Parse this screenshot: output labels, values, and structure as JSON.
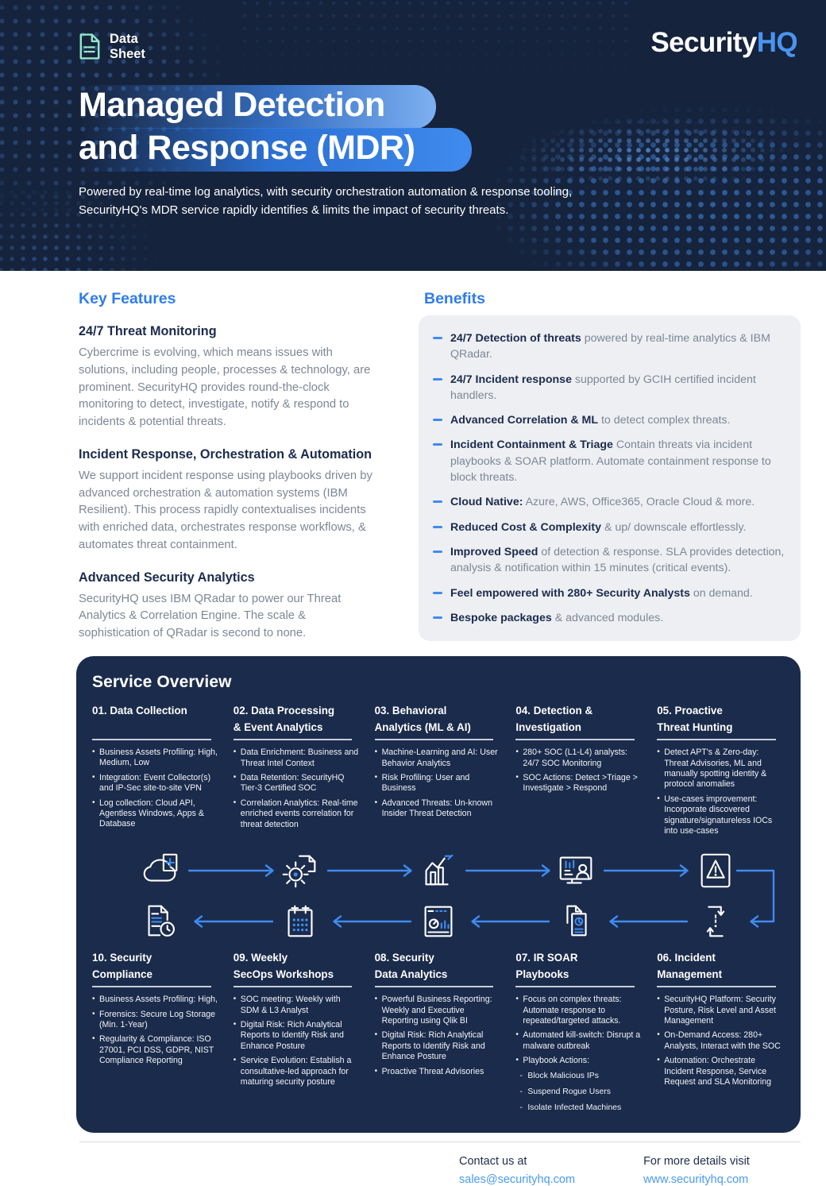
{
  "colors": {
    "header_navy": "#16233c",
    "panel_navy": "#1b2b4b",
    "accent_blue": "#2f7cea",
    "brand_blue": "#4a94f0",
    "link_blue": "#4a9af2",
    "badge_mint": "#93e9c8",
    "benefits_bg": "#edeff3",
    "heading_navy": "#1c2b4d",
    "body_gray": "#7d8795"
  },
  "header": {
    "badge_line1": "Data",
    "badge_line2": "Sheet",
    "brand_part1": "Security",
    "brand_part2": "HQ",
    "title_line1": "Managed Detection",
    "title_line2": "and Response (MDR)",
    "subtitle": "Powered by real-time log analytics, with security orchestration automation & response tooling, SecurityHQ's MDR service rapidly identifies & limits the impact of security threats."
  },
  "key_features": {
    "heading": "Key Features",
    "items": [
      {
        "title": "24/7 Threat Monitoring",
        "body": "Cybercrime is evolving, which means issues with solutions, including people, processes & technology, are prominent. SecurityHQ provides round-the-clock monitoring to detect, investigate, notify & respond to incidents & potential threats."
      },
      {
        "title": "Incident Response, Orchestration & Automation",
        "body": "We support incident response using playbooks driven by advanced orchestration & automation systems (IBM Resilient). This process rapidly contextualises incidents with enriched data, orchestrates response workflows, & automates threat containment."
      },
      {
        "title": "Advanced Security Analytics",
        "body": "SecurityHQ uses IBM QRadar to power our Threat Analytics & Correlation Engine. The scale & sophistication of QRadar is second to none."
      }
    ]
  },
  "benefits": {
    "heading": "Benefits",
    "items": [
      {
        "bold": "24/7 Detection of threats",
        "rest": " powered by real-time analytics & IBM QRadar."
      },
      {
        "bold": "24/7 Incident response",
        "rest": " supported by GCIH certified incident handlers."
      },
      {
        "bold": "Advanced Correlation & ML",
        "rest": " to detect complex threats."
      },
      {
        "bold": "Incident Containment & Triage",
        "rest": " Contain threats via incident playbooks & SOAR platform. Automate containment response to block threats."
      },
      {
        "bold": "Cloud Native:",
        "rest": " Azure, AWS, Office365, Oracle Cloud & more."
      },
      {
        "bold": "Reduced Cost & Complexity",
        "rest": " & up/ downscale effortlessly."
      },
      {
        "bold": "Improved Speed",
        "rest": " of detection & response. SLA provides detection, analysis & notification within 15 minutes (critical events)."
      },
      {
        "bold": "Feel empowered with 280+ Security Analysts",
        "rest": " on demand."
      },
      {
        "bold": "Bespoke packages",
        "rest": " & advanced modules."
      }
    ]
  },
  "service_overview": {
    "heading": "Service Overview",
    "columns_top": [
      {
        "title_line1": "01. Data Collection",
        "title_line2": "",
        "bullets": [
          "Business Assets Profiling: High, Medium, Low",
          "Integration: Event Collector(s) and IP-Sec site-to-site VPN",
          "Log collection: Cloud API, Agentless Windows, Apps & Database"
        ]
      },
      {
        "title_line1": "02. Data Processing",
        "title_line2": "& Event Analytics",
        "bullets": [
          "Data Enrichment: Business and Threat Intel Context",
          "Data Retention: SecurityHQ Tier-3 Certified SOC",
          "Correlation Analytics: Real-time enriched events correlation for threat detection"
        ]
      },
      {
        "title_line1": "03. Behavioral",
        "title_line2": "Analytics (ML & AI)",
        "bullets": [
          "Machine-Learning and AI: User Behavior Analytics",
          "Risk Profiling: User and Business",
          "Advanced Threats: Un-known Insider Threat Detection"
        ]
      },
      {
        "title_line1": "04. Detection &",
        "title_line2": "Investigation",
        "bullets": [
          "280+ SOC (L1-L4) analysts: 24/7 SOC Monitoring",
          "SOC Actions: Detect >Triage > Investigate > Respond"
        ]
      },
      {
        "title_line1": "05. Proactive",
        "title_line2": "Threat Hunting",
        "bullets": [
          "Detect APT's & Zero-day: Threat Advisories, ML and manually spotting identity & protocol anomalies",
          "Use-cases improvement: Incorporate discovered signature/signatureless IOCs into use-cases"
        ]
      }
    ],
    "columns_bottom": [
      {
        "title_line1": "10. Security",
        "title_line2": "Compliance",
        "bullets": [
          "Business Assets Profiling: High,",
          "Forensics: Secure Log Storage (Min. 1-Year)",
          "Regularity & Compliance: ISO 27001, PCI DSS, GDPR, NIST Compliance Reporting"
        ]
      },
      {
        "title_line1": "09. Weekly",
        "title_line2": "SecOps Workshops",
        "bullets": [
          "SOC meeting: Weekly with SDM & L3 Analyst",
          "Digital Risk: Rich Analytical Reports to Identify Risk and Enhance Posture",
          "Service Evolution: Establish a consultative-led approach for maturing security posture"
        ]
      },
      {
        "title_line1": "08. Security",
        "title_line2": "Data Analytics",
        "bullets": [
          "Powerful Business Reporting: Weekly and Executive Reporting using Qlik BI",
          "Digital Risk: Rich Analytical Reports to Identify Risk and Enhance Posture",
          "Proactive Threat Advisories"
        ]
      },
      {
        "title_line1": "07. IR SOAR",
        "title_line2": "Playbooks",
        "bullets": [
          "Focus on complex threats: Automate response to repeated/targeted attacks.",
          "Automated kill-switch: Disrupt a malware outbreak",
          "Playbook Actions:"
        ],
        "sub_bullets": [
          "Block Malicious IPs",
          "Suspend Rogue Users",
          "Isolate Infected Machines"
        ]
      },
      {
        "title_line1": "06. Incident",
        "title_line2": "Management",
        "bullets": [
          "SecurityHQ Platform: Security Posture, Risk Level and Asset Management",
          "On-Demand Access: 280+ Analysts, Interact with the SOC",
          "Automation: Orchestrate Incident Response, Service Request and SLA Monitoring"
        ]
      }
    ],
    "flow_icons_top": [
      "cloud-add-icon",
      "data-processing-icon",
      "analytics-chart-icon",
      "soc-monitor-icon",
      "threat-alert-icon"
    ],
    "flow_icons_bottom": [
      "compliance-log-icon",
      "calendar-icon",
      "report-dashboard-icon",
      "playbook-docs-icon",
      "incident-cycle-icon"
    ]
  },
  "footer": {
    "contact_label": "Contact us at",
    "contact_link": "sales@securityhq.com",
    "details_label": "For more details visit",
    "details_link": "www.securityhq.com"
  }
}
